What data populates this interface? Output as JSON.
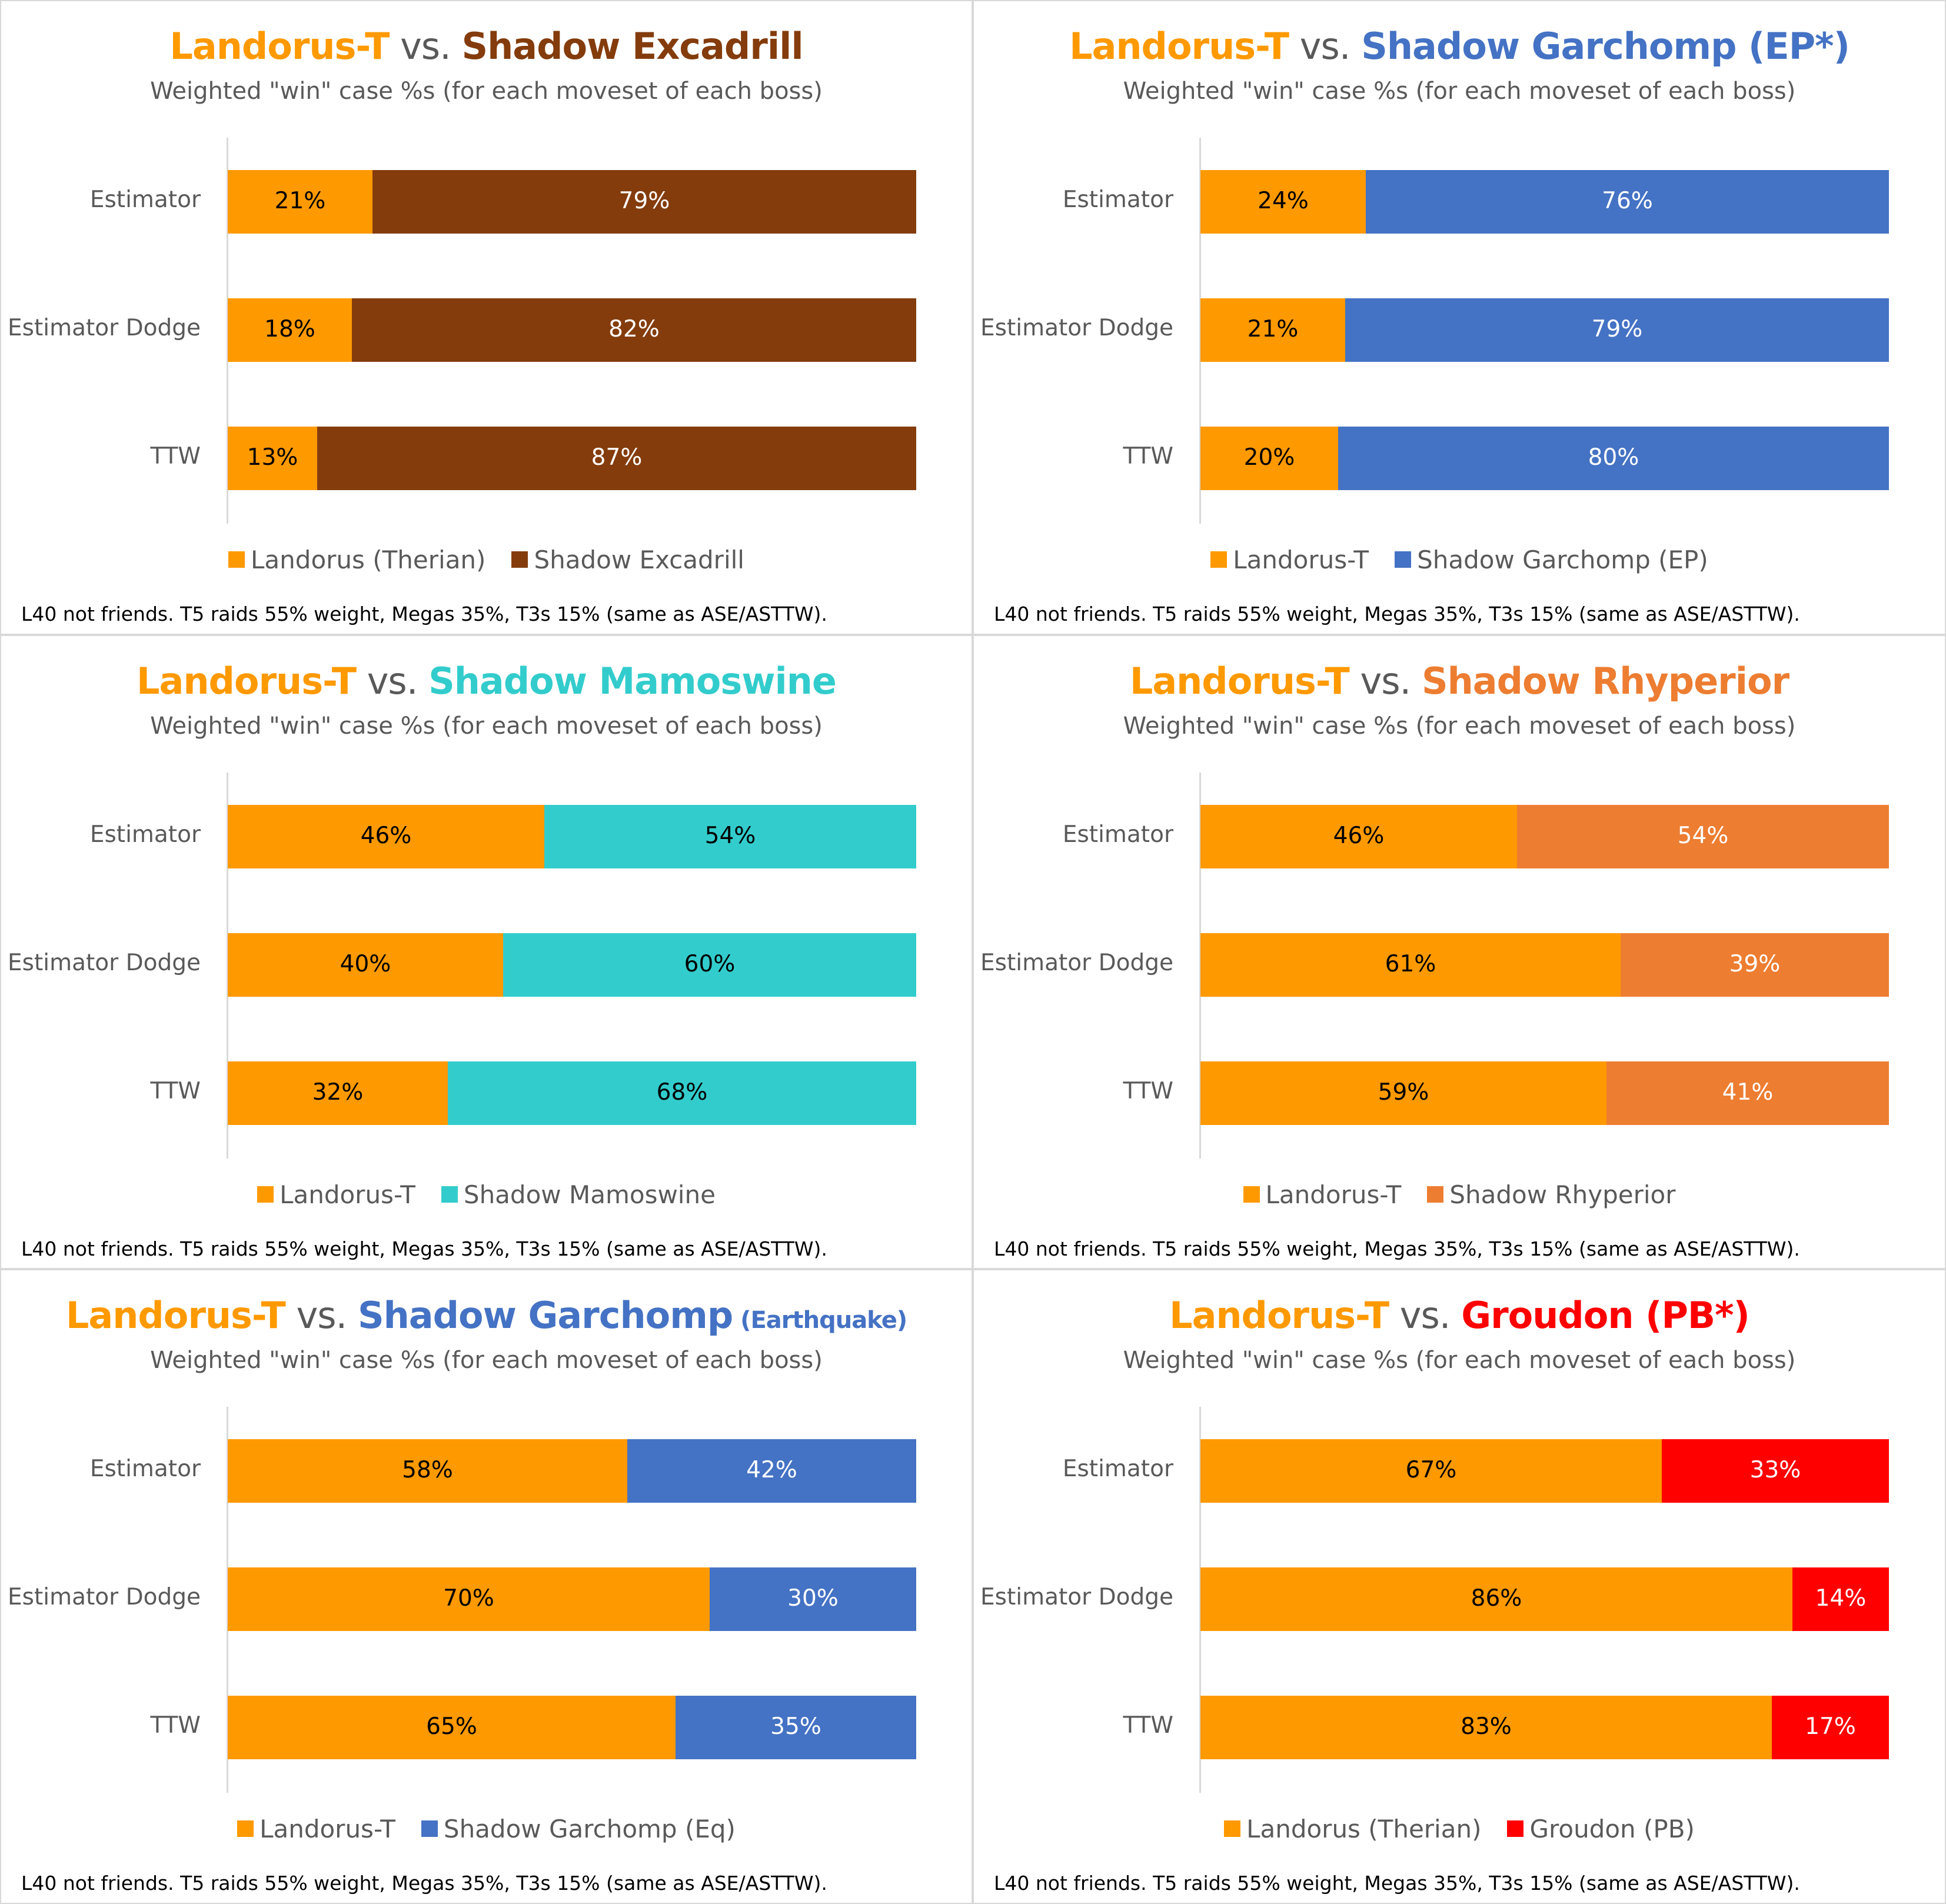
{
  "shared": {
    "subtitle": "Weighted \"win\" case %s (for each moveset of each boss)",
    "footnote": "L40 not friends. T5 raids 55% weight, Megas 35%, T3s 15% (same as ASE/ASTTW).",
    "vs_text": "vs."
  },
  "chart_data": [
    {
      "type": "bar",
      "stacked": true,
      "orientation": "horizontal",
      "title_left": "Landorus-T",
      "title_left_color": "#FF9900",
      "title_right": "Shadow Excadrill",
      "title_right_suffix": "",
      "title_right_color": "#843C0C",
      "categories": [
        "Estimator",
        "Estimator Dodge",
        "TTW"
      ],
      "series": [
        {
          "name": "Landorus (Therian)",
          "color": "#FF9900",
          "values": [
            21,
            18,
            13
          ],
          "labels": [
            "21%",
            "18%",
            "13%"
          ],
          "label_color": "#000000"
        },
        {
          "name": "Shadow Excadrill",
          "color": "#843C0C",
          "values": [
            79,
            82,
            87
          ],
          "labels": [
            "79%",
            "82%",
            "87%"
          ],
          "label_color": "#FFFFFF"
        }
      ],
      "xlim": [
        0,
        100
      ],
      "legend_position": "bottom",
      "grid": false
    },
    {
      "type": "bar",
      "stacked": true,
      "orientation": "horizontal",
      "title_left": "Landorus-T",
      "title_left_color": "#FF9900",
      "title_right": "Shadow Garchomp (EP*)",
      "title_right_suffix": "",
      "title_right_color": "#4472C4",
      "categories": [
        "Estimator",
        "Estimator Dodge",
        "TTW"
      ],
      "series": [
        {
          "name": "Landorus-T",
          "color": "#FF9900",
          "values": [
            24,
            21,
            20
          ],
          "labels": [
            "24%",
            "21%",
            "20%"
          ],
          "label_color": "#000000"
        },
        {
          "name": "Shadow Garchomp (EP)",
          "color": "#4472C4",
          "values": [
            76,
            79,
            80
          ],
          "labels": [
            "76%",
            "79%",
            "80%"
          ],
          "label_color": "#FFFFFF"
        }
      ],
      "xlim": [
        0,
        100
      ],
      "legend_position": "bottom",
      "grid": false
    },
    {
      "type": "bar",
      "stacked": true,
      "orientation": "horizontal",
      "title_left": "Landorus-T",
      "title_left_color": "#FF9900",
      "title_right": "Shadow Mamoswine",
      "title_right_suffix": "",
      "title_right_color": "#33CCCC",
      "categories": [
        "Estimator",
        "Estimator Dodge",
        "TTW"
      ],
      "series": [
        {
          "name": "Landorus-T",
          "color": "#FF9900",
          "values": [
            46,
            40,
            32
          ],
          "labels": [
            "46%",
            "40%",
            "32%"
          ],
          "label_color": "#000000"
        },
        {
          "name": "Shadow Mamoswine",
          "color": "#33CCCC",
          "values": [
            54,
            60,
            68
          ],
          "labels": [
            "54%",
            "60%",
            "68%"
          ],
          "label_color": "#000000"
        }
      ],
      "xlim": [
        0,
        100
      ],
      "legend_position": "bottom",
      "grid": false
    },
    {
      "type": "bar",
      "stacked": true,
      "orientation": "horizontal",
      "title_left": "Landorus-T",
      "title_left_color": "#FF9900",
      "title_right": "Shadow Rhyperior",
      "title_right_suffix": "",
      "title_right_color": "#ED7D31",
      "categories": [
        "Estimator",
        "Estimator Dodge",
        "TTW"
      ],
      "series": [
        {
          "name": "Landorus-T",
          "color": "#FF9900",
          "values": [
            46,
            61,
            59
          ],
          "labels": [
            "46%",
            "61%",
            "59%"
          ],
          "label_color": "#000000"
        },
        {
          "name": "Shadow Rhyperior",
          "color": "#ED7D31",
          "values": [
            54,
            39,
            41
          ],
          "labels": [
            "54%",
            "39%",
            "41%"
          ],
          "label_color": "#FFFFFF"
        }
      ],
      "xlim": [
        0,
        100
      ],
      "legend_position": "bottom",
      "grid": false
    },
    {
      "type": "bar",
      "stacked": true,
      "orientation": "horizontal",
      "title_left": "Landorus-T",
      "title_left_color": "#FF9900",
      "title_right": "Shadow Garchomp",
      "title_right_suffix": "(Earthquake)",
      "title_right_color": "#4472C4",
      "categories": [
        "Estimator",
        "Estimator Dodge",
        "TTW"
      ],
      "series": [
        {
          "name": "Landorus-T",
          "color": "#FF9900",
          "values": [
            58,
            70,
            65
          ],
          "labels": [
            "58%",
            "70%",
            "65%"
          ],
          "label_color": "#000000"
        },
        {
          "name": "Shadow Garchomp (Eq)",
          "color": "#4472C4",
          "values": [
            42,
            30,
            35
          ],
          "labels": [
            "42%",
            "30%",
            "35%"
          ],
          "label_color": "#FFFFFF"
        }
      ],
      "xlim": [
        0,
        100
      ],
      "legend_position": "bottom",
      "grid": false
    },
    {
      "type": "bar",
      "stacked": true,
      "orientation": "horizontal",
      "title_left": "Landorus-T",
      "title_left_color": "#FF9900",
      "title_right": "Groudon (PB*)",
      "title_right_suffix": "",
      "title_right_color": "#FF0000",
      "categories": [
        "Estimator",
        "Estimator Dodge",
        "TTW"
      ],
      "series": [
        {
          "name": "Landorus (Therian)",
          "color": "#FF9900",
          "values": [
            67,
            86,
            83
          ],
          "labels": [
            "67%",
            "86%",
            "83%"
          ],
          "label_color": "#000000"
        },
        {
          "name": "Groudon (PB)",
          "color": "#FF0000",
          "values": [
            33,
            14,
            17
          ],
          "labels": [
            "33%",
            "14%",
            "17%"
          ],
          "label_color": "#FFFFFF"
        }
      ],
      "xlim": [
        0,
        100
      ],
      "legend_position": "bottom",
      "grid": false
    }
  ]
}
